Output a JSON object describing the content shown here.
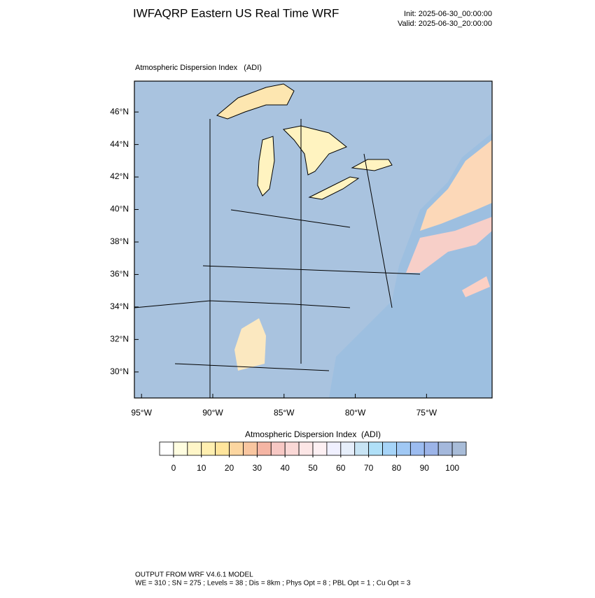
{
  "header": {
    "title": "IWFAQRP Eastern US Real Time WRF",
    "init": "Init: 2025-06-30_00:00:00",
    "valid": "Valid: 2025-06-30_20:00:00"
  },
  "map": {
    "title": "Atmospheric Dispersion Index   (ADI)",
    "xlim": [
      -95.5,
      -70.4
    ],
    "ylim": [
      28.4,
      47.9
    ],
    "xticks": [
      {
        "value": -95,
        "label": "95°W"
      },
      {
        "value": -90,
        "label": "90°W"
      },
      {
        "value": -85,
        "label": "85°W"
      },
      {
        "value": -80,
        "label": "80°W"
      },
      {
        "value": -75,
        "label": "75°W"
      }
    ],
    "yticks": [
      {
        "value": 30,
        "label": "30°N"
      },
      {
        "value": 32,
        "label": "32°N"
      },
      {
        "value": 34,
        "label": "34°N"
      },
      {
        "value": 36,
        "label": "36°N"
      },
      {
        "value": 38,
        "label": "38°N"
      },
      {
        "value": 40,
        "label": "40°N"
      },
      {
        "value": 42,
        "label": "42°N"
      },
      {
        "value": 44,
        "label": "44°N"
      },
      {
        "value": 46,
        "label": "46°N"
      }
    ]
  },
  "colorbar": {
    "title": "Atmospheric Dispersion Index  (ADI)",
    "ticks": [
      0,
      10,
      20,
      30,
      40,
      50,
      60,
      70,
      80,
      90,
      100
    ],
    "lim": [
      -5,
      105
    ],
    "colors": [
      "#ffffff",
      "#fffde0",
      "#fff6c8",
      "#ffefb0",
      "#ffe59c",
      "#fcd6a0",
      "#f9c6a0",
      "#f5b5a4",
      "#f7c8c4",
      "#fad8d6",
      "#fce6e6",
      "#fdf0f3",
      "#f0f0ff",
      "#e6eefa",
      "#c8e4f4",
      "#b0e0f8",
      "#a6d4f8",
      "#a0c8f4",
      "#9cbcf0",
      "#9cb4e8",
      "#a4b8dc",
      "#a8bcd8"
    ]
  },
  "footer": {
    "line1": "OUTPUT FROM WRF V4.6.1 MODEL",
    "line2": "WE = 310 ; SN = 275 ; Levels = 38 ; Dis = 8km ; Phys Opt = 8 ; PBL Opt = 1 ; Cu Opt = 3"
  }
}
